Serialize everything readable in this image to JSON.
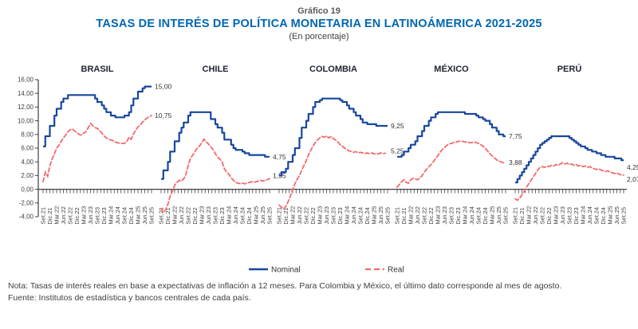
{
  "header": {
    "kicker": "Gráfico 19",
    "title": "TASAS DE INTERÉS DE POLÍTICA MONETARIA EN LATINOÁMERICA 2021-2025",
    "subtitle": "(En porcentaje)"
  },
  "colors": {
    "nominal_line": "#17479E",
    "real_line": "#F4696B",
    "axis": "#404040",
    "title_blue": "#0066B2",
    "kicker_gray": "#58595B",
    "label_text": "#333333"
  },
  "legend": [
    {
      "label": "Nominal",
      "style": "solid"
    },
    {
      "label": "Real",
      "style": "dashed"
    }
  ],
  "footnote": {
    "note": "Nota: Tasas de interés reales en base a expectativas de inflación a 12 meses. Para Colombia y México, el último dato corresponde al mes de agosto.",
    "source": "Fuente: Institutos de estadística y bancos centrales de cada país."
  },
  "chart_data": {
    "type": "line",
    "y_axis": {
      "min": -4,
      "max": 16,
      "step": 2,
      "tick_labels": [
        "16,00",
        "14,00",
        "12,00",
        "10,00",
        "8,00",
        "6,00",
        "4,00",
        "2,00",
        "0,00",
        "-2,00",
        "-4,00"
      ]
    },
    "x_tick_labels": [
      "Set.21",
      "Dic.21",
      "Mar.22",
      "Jun.22",
      "Set.22",
      "Dic.22",
      "Mar.23",
      "Jun.23",
      "Set.23",
      "Dic.23",
      "Mar.24",
      "Jun.24",
      "Set.24",
      "Dic.24",
      "Mar.25",
      "Jun.25",
      "Set.25"
    ],
    "frequency": "monthly Set.21–Set.25 (49 points per series)",
    "panels": [
      {
        "name": "BRASIL",
        "end_labels": {
          "nominal": "15,00",
          "real": "10,75"
        },
        "label_dy": {
          "nominal": 0,
          "real": 0
        },
        "series": {
          "nominal": [
            6.25,
            7.75,
            7.75,
            9.25,
            9.25,
            10.75,
            11.75,
            11.75,
            12.75,
            13.25,
            13.25,
            13.75,
            13.75,
            13.75,
            13.75,
            13.75,
            13.75,
            13.75,
            13.75,
            13.75,
            13.75,
            13.75,
            13.75,
            13.25,
            12.75,
            12.75,
            12.25,
            11.75,
            11.25,
            11.25,
            10.75,
            10.75,
            10.5,
            10.5,
            10.5,
            10.5,
            10.75,
            10.75,
            11.25,
            12.25,
            13.25,
            13.25,
            14.25,
            14.25,
            14.75,
            15,
            15,
            15,
            15
          ],
          "real": [
            1.1,
            2.5,
            1.9,
            3.4,
            4.4,
            5.2,
            6.0,
            6.4,
            7.0,
            7.5,
            7.9,
            8.4,
            8.7,
            8.8,
            8.5,
            8.3,
            8.0,
            7.9,
            8.2,
            8.4,
            9.0,
            9.6,
            9.3,
            9.0,
            8.9,
            8.6,
            8.2,
            7.8,
            7.5,
            7.3,
            7.2,
            7.1,
            6.9,
            6.8,
            6.7,
            6.7,
            6.7,
            6.9,
            7.6,
            7.3,
            8.1,
            8.6,
            9.1,
            9.4,
            9.8,
            10.1,
            10.4,
            10.6,
            10.75
          ]
        }
      },
      {
        "name": "CHILE",
        "end_labels": {
          "nominal": "4,75",
          "real": "1,55"
        },
        "label_dy": {
          "nominal": 0,
          "real": -4
        },
        "series": {
          "nominal": [
            1.5,
            2.75,
            2.75,
            4,
            5.5,
            5.5,
            7,
            7,
            8.25,
            9,
            9.75,
            9.75,
            10.75,
            11.25,
            11.25,
            11.25,
            11.25,
            11.25,
            11.25,
            11.25,
            11.25,
            11.25,
            10.25,
            10.25,
            9.5,
            9,
            9,
            8.25,
            7.25,
            7.25,
            7.25,
            6.5,
            6,
            5.75,
            5.75,
            5.75,
            5.5,
            5.25,
            5.25,
            5,
            5,
            5,
            5,
            5,
            5,
            5,
            4.75,
            4.75,
            4.75
          ],
          "real": [
            -2.8,
            -3.4,
            -3.0,
            -2.2,
            -1.0,
            -0.3,
            0.6,
            1.0,
            1.3,
            1.2,
            1.5,
            2.2,
            3.5,
            4.5,
            5.0,
            5.5,
            6.0,
            6.3,
            6.8,
            7.3,
            6.9,
            6.6,
            6.2,
            5.8,
            5.2,
            4.7,
            4.4,
            4.0,
            3.0,
            2.5,
            2.2,
            1.7,
            1.3,
            1.0,
            0.9,
            0.8,
            0.9,
            0.8,
            0.9,
            1.0,
            1.1,
            1.0,
            1.1,
            1.2,
            1.3,
            1.2,
            1.3,
            1.4,
            1.55
          ]
        }
      },
      {
        "name": "COLOMBIA",
        "end_labels": {
          "nominal": "9,25",
          "real": "5,25"
        },
        "label_dy": {
          "nominal": 0,
          "real": -3
        },
        "series": {
          "nominal": [
            2,
            2.5,
            2.5,
            3,
            4,
            4,
            5,
            6,
            6,
            7.5,
            9,
            9,
            10,
            11,
            11,
            12,
            12.75,
            12.75,
            13,
            13.25,
            13.25,
            13.25,
            13.25,
            13.25,
            13.25,
            13.25,
            13.25,
            13,
            12.75,
            12.75,
            12.25,
            11.75,
            11.75,
            11.25,
            10.75,
            10.75,
            10.25,
            9.75,
            9.75,
            9.5,
            9.5,
            9.5,
            9.5,
            9.25,
            9.25,
            9.25,
            9.25,
            9.25,
            9.25
          ],
          "real": [
            -2.3,
            -2.6,
            -2.9,
            -2.5,
            -1.8,
            -1.0,
            0.0,
            0.8,
            1.5,
            2.0,
            2.8,
            3.5,
            4.2,
            5.0,
            5.7,
            6.3,
            6.8,
            7.2,
            7.5,
            7.7,
            7.6,
            7.8,
            7.5,
            7.7,
            7.4,
            7.2,
            6.9,
            6.5,
            6.3,
            6.0,
            5.8,
            5.6,
            5.5,
            5.4,
            5.5,
            5.3,
            5.4,
            5.3,
            5.2,
            5.3,
            5.2,
            5.3,
            5.2,
            5.1,
            5.2,
            5.3,
            5.2,
            5.25,
            null
          ]
        }
      },
      {
        "name": "MÉXICO",
        "end_labels": {
          "nominal": "7,75",
          "real": "3,88"
        },
        "label_dy": {
          "nominal": 0,
          "real": 0
        },
        "series": {
          "nominal": [
            4.75,
            4.75,
            5,
            5.5,
            5.5,
            6,
            6.5,
            6.5,
            7,
            7.75,
            7.75,
            8.5,
            9.25,
            9.25,
            10,
            10.5,
            10.5,
            11,
            11.25,
            11.25,
            11.25,
            11.25,
            11.25,
            11.25,
            11.25,
            11.25,
            11.25,
            11.25,
            11.25,
            11.25,
            11,
            11,
            11,
            11,
            11,
            10.75,
            10.5,
            10.5,
            10.25,
            10,
            10,
            9.5,
            9,
            9,
            8.5,
            8,
            8,
            7.75,
            7.75
          ],
          "real": [
            0.3,
            0.7,
            1.1,
            1.4,
            1.0,
            0.9,
            1.4,
            1.6,
            1.5,
            1.4,
            1.6,
            2.0,
            2.5,
            2.9,
            3.3,
            3.6,
            4.0,
            4.5,
            4.9,
            5.4,
            5.8,
            6.1,
            6.4,
            6.6,
            6.7,
            6.8,
            6.9,
            7.0,
            7.0,
            7.0,
            6.9,
            6.9,
            6.8,
            6.8,
            6.9,
            6.8,
            6.7,
            6.5,
            6.3,
            6.0,
            5.6,
            5.2,
            4.9,
            4.6,
            4.3,
            4.1,
            4.0,
            3.88,
            null
          ]
        }
      },
      {
        "name": "PERÚ",
        "end_labels": {
          "nominal": "4,25",
          "real": "2,07"
        },
        "label_dy": {
          "nominal": 9,
          "real": 5
        },
        "series": {
          "nominal": [
            1,
            1.5,
            2,
            2.5,
            3,
            3.5,
            4,
            4.5,
            5,
            5.5,
            6,
            6.5,
            6.75,
            7,
            7.25,
            7.5,
            7.75,
            7.75,
            7.75,
            7.75,
            7.75,
            7.75,
            7.75,
            7.75,
            7.5,
            7.25,
            7,
            6.75,
            6.5,
            6.25,
            6.25,
            6,
            5.75,
            5.75,
            5.5,
            5.5,
            5.25,
            5.25,
            5,
            5,
            4.75,
            4.75,
            4.75,
            4.75,
            4.5,
            4.5,
            4.5,
            4.25,
            4.25
          ],
          "real": [
            -1.4,
            -1.6,
            -1.3,
            -0.8,
            -0.3,
            0.3,
            0.8,
            1.3,
            1.8,
            2.3,
            2.8,
            3.2,
            3.3,
            3.2,
            3.4,
            3.3,
            3.5,
            3.4,
            3.6,
            3.5,
            3.7,
            3.9,
            3.7,
            3.8,
            3.6,
            3.7,
            3.5,
            3.6,
            3.4,
            3.5,
            3.3,
            3.4,
            3.2,
            3.3,
            3.1,
            3.0,
            2.9,
            3.0,
            2.8,
            2.7,
            2.6,
            2.7,
            2.5,
            2.4,
            2.3,
            2.4,
            2.2,
            2.1,
            2.07
          ]
        }
      }
    ]
  }
}
